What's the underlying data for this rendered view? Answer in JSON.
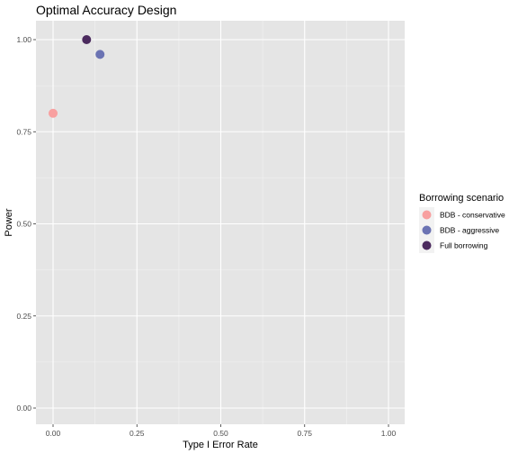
{
  "chart_data": {
    "type": "scatter",
    "title": "Optimal Accuracy Design",
    "xlabel": "Type I Error Rate",
    "ylabel": "Power",
    "xlim": [
      0,
      1
    ],
    "ylim": [
      0,
      1
    ],
    "x_ticks": [
      0,
      0.25,
      0.5,
      0.75,
      1
    ],
    "x_tick_labels": [
      "0.00",
      "0.25",
      "0.50",
      "0.75",
      "1.00"
    ],
    "y_ticks": [
      0,
      0.25,
      0.5,
      0.75,
      1
    ],
    "y_tick_labels": [
      "0.00",
      "0.25",
      "0.50",
      "0.75",
      "1.00"
    ],
    "grid": true,
    "legend": {
      "title": "Borrowing scenario",
      "placement": "right"
    },
    "series": [
      {
        "name": "BDB - conservative",
        "color": "#F8A0A0",
        "points": [
          {
            "x": 0.0,
            "y": 0.8
          }
        ]
      },
      {
        "name": "BDB - aggressive",
        "color": "#6B73B3",
        "points": [
          {
            "x": 0.14,
            "y": 0.96
          }
        ]
      },
      {
        "name": "Full borrowing",
        "color": "#4B2A5E",
        "points": [
          {
            "x": 0.1,
            "y": 1.0
          }
        ]
      }
    ]
  }
}
